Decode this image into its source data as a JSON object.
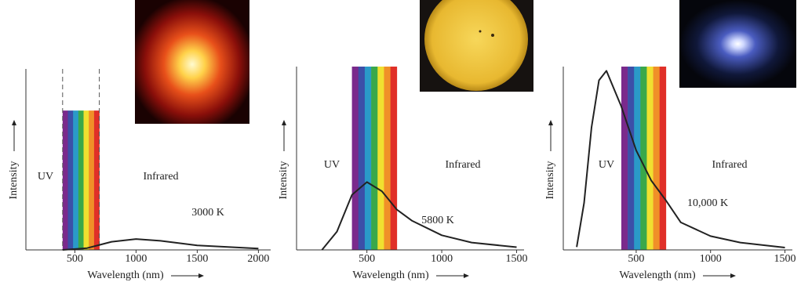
{
  "chart_data": [
    {
      "type": "line",
      "x_label": "Wavelength (nm)",
      "y_label": "Intensity",
      "region_left": "UV",
      "region_right": "Infrared",
      "curve_label": "3000 K",
      "x": [
        400,
        600,
        800,
        1000,
        1200,
        1500,
        2000
      ],
      "values": [
        0,
        1,
        4.5,
        6,
        5,
        2.5,
        0.8
      ],
      "color": "#222222",
      "xlim": [
        100,
        2100
      ],
      "ylim": [
        0,
        100
      ],
      "xticks": [
        500,
        1000,
        1500,
        2000
      ],
      "visible_band": [
        400,
        700
      ],
      "band_top": 77,
      "band_dashed": true
    },
    {
      "type": "line",
      "x_label": "Wavelength (nm)",
      "y_label": "Intensity",
      "region_left": "UV",
      "region_right": "Infrared",
      "curve_label": "5800 K",
      "x": [
        200,
        300,
        400,
        500,
        600,
        700,
        800,
        1000,
        1200,
        1500
      ],
      "values": [
        0,
        10,
        30,
        37,
        32,
        22,
        16,
        8,
        4,
        1.5
      ],
      "color": "#222222",
      "xlim": [
        30,
        1550
      ],
      "ylim": [
        0,
        100
      ],
      "xticks": [
        500,
        1000,
        1500
      ],
      "visible_band": [
        400,
        700
      ],
      "band_top": 100,
      "band_dashed": false
    },
    {
      "type": "line",
      "x_label": "Wavelength (nm)",
      "y_label": "Intensity",
      "region_left": "UV",
      "region_right": "Infrared",
      "curve_label": "10,000 K",
      "x": [
        100,
        150,
        200,
        250,
        300,
        400,
        500,
        600,
        700,
        800,
        1000,
        1200,
        1500
      ],
      "values": [
        1.6,
        25.6,
        66.9,
        92.5,
        97.7,
        78.3,
        54.3,
        38,
        27,
        15,
        7.5,
        4,
        1.3
      ],
      "color": "#222222",
      "xlim": [
        10,
        1550
      ],
      "ylim": [
        0,
        100
      ],
      "xticks": [
        500,
        1000,
        1500
      ],
      "visible_band": [
        400,
        700
      ],
      "band_top": 100,
      "band_dashed": false
    }
  ]
}
